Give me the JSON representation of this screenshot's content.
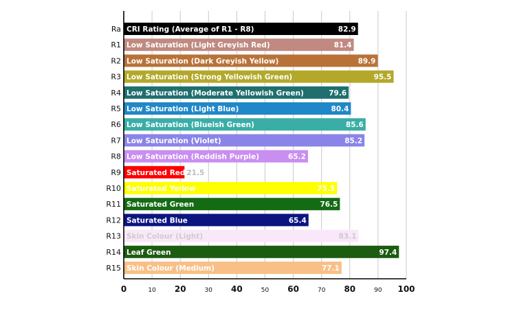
{
  "chart_data": {
    "type": "bar",
    "orientation": "horizontal",
    "categories": [
      "Ra",
      "R1",
      "R2",
      "R3",
      "R4",
      "R5",
      "R6",
      "R7",
      "R8",
      "R9",
      "R10",
      "R11",
      "R12",
      "R13",
      "R14",
      "R15"
    ],
    "bar_labels": [
      "CRI Rating (Average of R1 - R8)",
      "Low Saturation (Light Greyish Red)",
      "Low Saturation (Dark Greyish Yellow)",
      "Low Saturation (Strong Yellowish Green)",
      "Low Saturation (Moderate Yellowish Green)",
      "Low Saturation (Light Blue)",
      "Low Saturation (Blueish Green)",
      "Low Saturation (Violet)",
      "Low Saturation (Reddish Purple)",
      "Saturated Red",
      "Saturated Yellow",
      "Saturated Green",
      "Saturated Blue",
      "Skin Colour (Light)",
      "Leaf Green",
      "Skin Colour (Medium)"
    ],
    "values": [
      82.9,
      81.4,
      89.9,
      95.5,
      79.6,
      80.4,
      85.6,
      85.2,
      65.2,
      21.5,
      75.5,
      76.5,
      65.4,
      83.1,
      97.4,
      77.1
    ],
    "value_labels": [
      "82.9",
      "81.4",
      "89.9",
      "95.5",
      "79.6",
      "80.4",
      "85.6",
      "85.2",
      "65.2",
      "21.5",
      "75.5",
      "76.5",
      "65.4",
      "83.1",
      "97.4",
      "77.1"
    ],
    "colors": [
      "#000000",
      "#c08a80",
      "#b87238",
      "#b3a82a",
      "#1f6f6f",
      "#2088c8",
      "#3aaea6",
      "#8a84e8",
      "#c88ef0",
      "#ff0000",
      "#ffff00",
      "#156b14",
      "#0c1480",
      "#f9e8f9",
      "#1c5c10",
      "#f8c088"
    ],
    "text_colors": [
      "#ffffff",
      "#ffffff",
      "#ffffff",
      "#ffffff",
      "#ffffff",
      "#ffffff",
      "#ffffff",
      "#ffffff",
      "#ffffff",
      "#ffffff",
      "#ffffff",
      "#ffffff",
      "#ffffff",
      "#cccccc",
      "#ffffff",
      "#ffffff"
    ],
    "outside_value_text_color": "#bbbbbb",
    "xlim": [
      0,
      100
    ],
    "xticks": [
      0,
      10,
      20,
      30,
      40,
      50,
      60,
      70,
      80,
      90,
      100
    ],
    "xtick_labels": [
      "0",
      "10",
      "20",
      "30",
      "40",
      "50",
      "60",
      "70",
      "80",
      "90",
      "100"
    ],
    "xtick_major": [
      0,
      20,
      40,
      60,
      80,
      100
    ],
    "grid": true,
    "title": "",
    "xlabel": "",
    "ylabel": "",
    "legend": "none"
  }
}
